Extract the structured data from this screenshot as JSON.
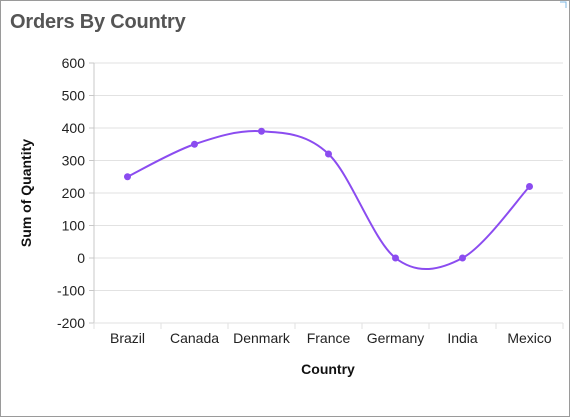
{
  "card": {
    "title": "Orders By Country"
  },
  "colors": {
    "series": "#8b4cf0",
    "grid": "#e2e2e2",
    "axis": "#c8c8c8",
    "corner_icon": "#7fb8e6"
  },
  "icons": {
    "corner": "expand-icon"
  },
  "chart_data": {
    "type": "line",
    "smooth": true,
    "categories": [
      "Brazil",
      "Canada",
      "Denmark",
      "France",
      "Germany",
      "India",
      "Mexico"
    ],
    "series": [
      {
        "values": [
          250,
          350,
          390,
          320,
          0,
          0,
          220
        ]
      }
    ],
    "xlabel": "Country",
    "ylabel": "Sum of Quantity",
    "ylim": [
      -200,
      600
    ],
    "yticks": [
      600,
      500,
      400,
      300,
      200,
      100,
      0,
      -100,
      -200
    ],
    "grid": true,
    "legend": "none"
  }
}
